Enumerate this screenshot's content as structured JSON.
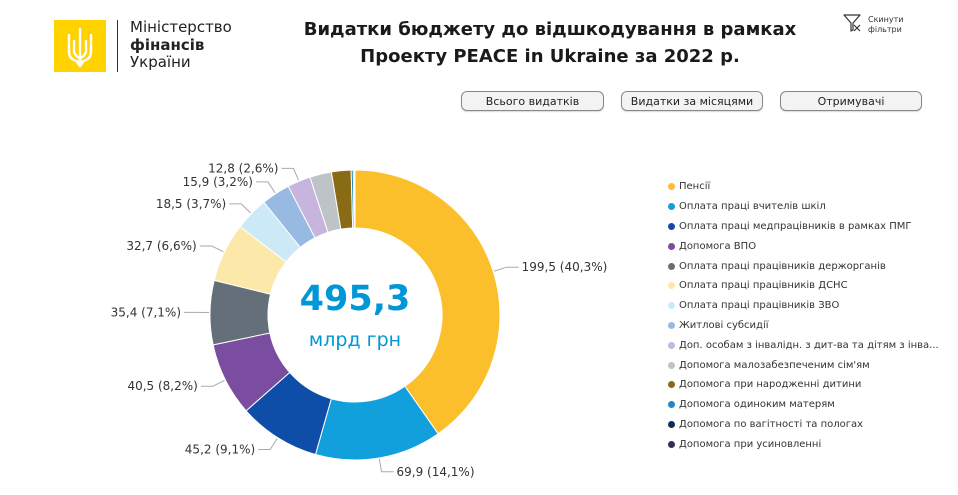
{
  "ministry": {
    "line1": "Міністерство",
    "line2": "фінансів",
    "line3": "України"
  },
  "title": {
    "line1": "Видатки бюджету до відшкодування в рамках",
    "line2": "Проекту PEACE in Ukraine за 2022 р."
  },
  "reset_filters": {
    "line1": "Скинути",
    "line2": "фільтри"
  },
  "nav": {
    "total": "Всього видатків",
    "months": "Видатки за місяцями",
    "recipients": "Отримувачі"
  },
  "center": {
    "value": "495,3",
    "unit": "млрд грн"
  },
  "colors": {
    "logo_yellow": "#FFD200",
    "center_text": "#0097D8"
  },
  "chart_data": {
    "type": "donut",
    "total": 495.3,
    "slices": [
      {
        "name": "Пенсії",
        "value": 199.5,
        "label": "199,5 (40,3%)",
        "color": "#FBBF2C"
      },
      {
        "name": "Оплата праці вчителів шкіл",
        "value": 69.9,
        "label": "69,9 (14,1%)",
        "color": "#12A0DC"
      },
      {
        "name": "Оплата праці медпрацівників в рамках ПМГ",
        "value": 45.2,
        "label": "45,2 (9,1%)",
        "color": "#0E4EA9"
      },
      {
        "name": "Допомога ВПО",
        "value": 40.5,
        "label": "40,5 (8,2%)",
        "color": "#7B4DA0"
      },
      {
        "name": "Оплата праці працівників держорганів",
        "value": 35.4,
        "label": "35,4 (7,1%)",
        "color": "#646F79"
      },
      {
        "name": "Оплата праці працівників ДСНС",
        "value": 32.7,
        "label": "32,7 (6,6%)",
        "color": "#FCE9A9"
      },
      {
        "name": "Оплата праці працівників ЗВО",
        "value": 18.5,
        "label": "18,5 (3,7%)",
        "color": "#CBE9F6"
      },
      {
        "name": "Житлові субсидії",
        "value": 15.9,
        "label": "15,9 (3,2%)",
        "color": "#97B9E2"
      },
      {
        "name": "Доп. особам з інвалідн. з дит-ва та дітям з інва...",
        "value": 12.8,
        "label": "12,8 (2,6%)",
        "color": "#C8B5DD"
      },
      {
        "name": "Допомога малозабезпеченим сім'ям",
        "value": 12.0,
        "label": "",
        "color": "#BEC3C8"
      },
      {
        "name": "Допомога при народженні дитини",
        "value": 10.8,
        "label": "",
        "color": "#8A6B15"
      },
      {
        "name": "Допомога одиноким матерям",
        "value": 1.2,
        "label": "",
        "color": "#1D8CBF"
      },
      {
        "name": "Допомога по вагітності та пологах",
        "value": 0.6,
        "label": "",
        "color": "#0B2E5E"
      },
      {
        "name": "Допомога при усиновленні",
        "value": 0.3,
        "label": "",
        "color": "#3F2A55"
      }
    ]
  }
}
